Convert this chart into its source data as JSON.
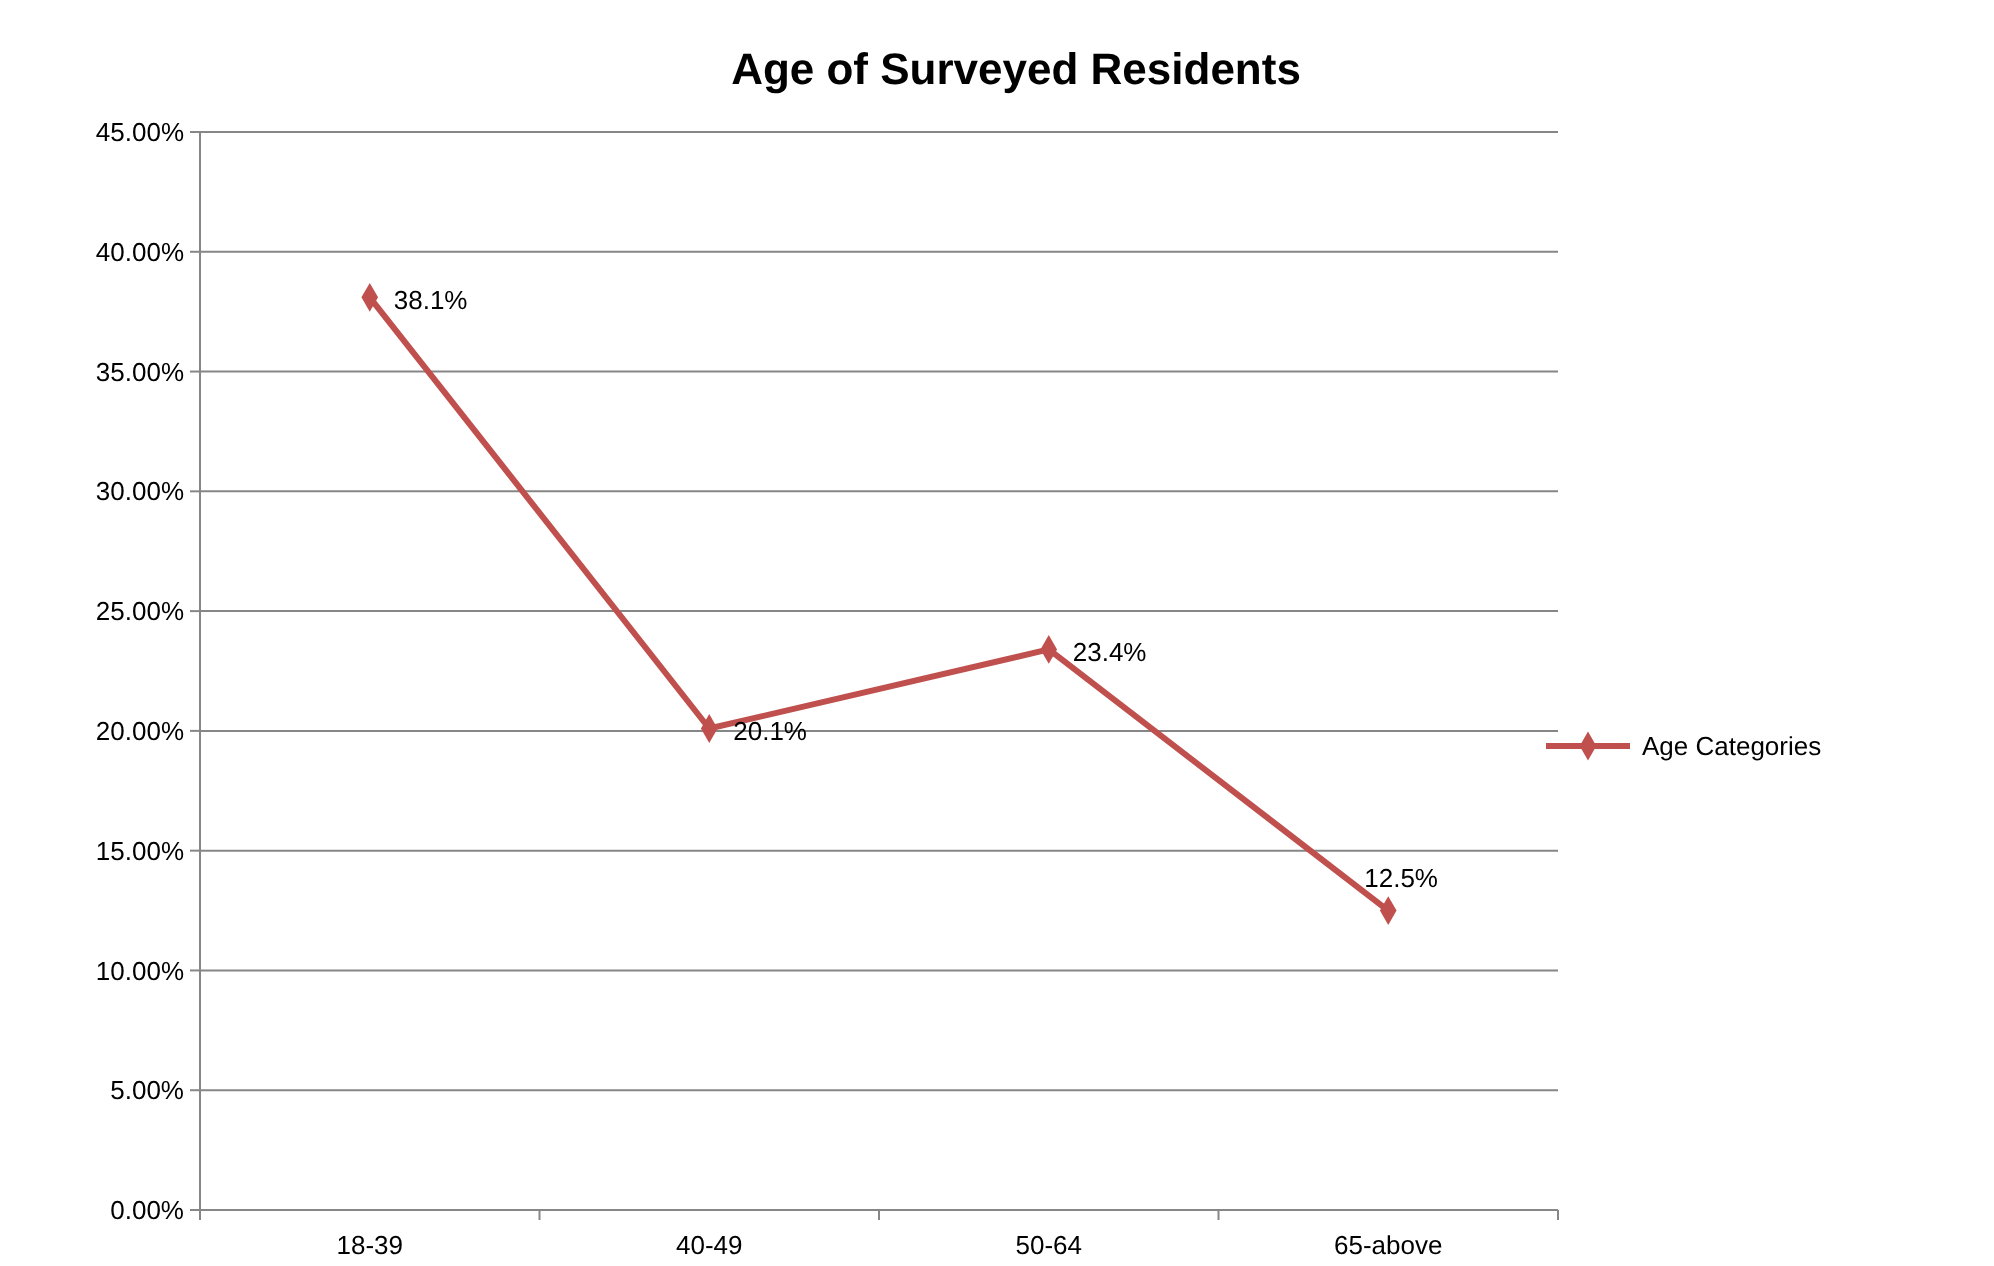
{
  "chart_data": {
    "type": "line",
    "title": "Age of Surveyed Residents",
    "categories": [
      "18-39",
      "40-49",
      "50-64",
      "65-above"
    ],
    "series": [
      {
        "name": "Age Categories",
        "color": "#c0504d",
        "values": [
          38.1,
          20.1,
          23.4,
          12.5
        ],
        "value_labels": [
          "38.1%",
          "20.1%",
          "23.4%",
          "12.5%"
        ]
      }
    ],
    "ylim": [
      0,
      45
    ],
    "yticks": [
      {
        "value": 0,
        "label": "0.00%"
      },
      {
        "value": 5,
        "label": "5.00%"
      },
      {
        "value": 10,
        "label": "10.00%"
      },
      {
        "value": 15,
        "label": "15.00%"
      },
      {
        "value": 20,
        "label": "20.00%"
      },
      {
        "value": 25,
        "label": "25.00%"
      },
      {
        "value": 30,
        "label": "30.00%"
      },
      {
        "value": 35,
        "label": "35.00%"
      },
      {
        "value": 40,
        "label": "40.00%"
      },
      {
        "value": 45,
        "label": "45.00%"
      }
    ],
    "grid": "y",
    "legend": "right",
    "marker": "diamond",
    "line_style": "solid"
  }
}
